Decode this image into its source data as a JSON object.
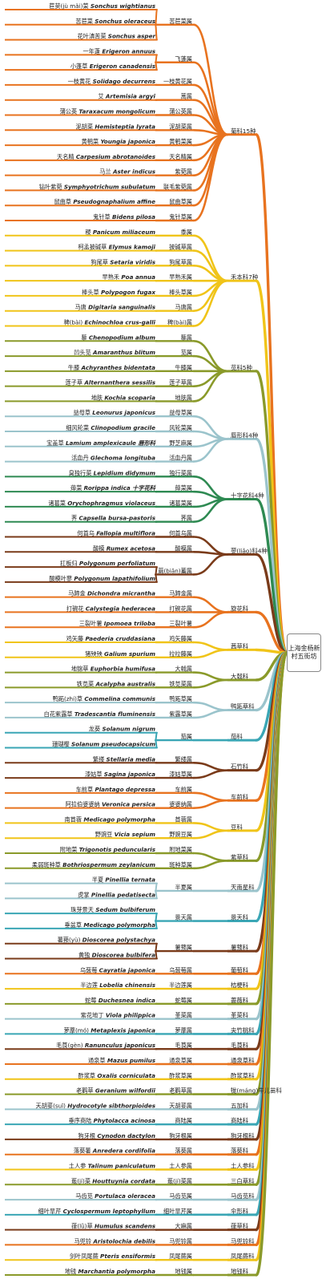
{
  "root": "上海金杨新村五街坊",
  "watermark": "",
  "colors": [
    "#e8731f",
    "#f0c419",
    "#8a9a2a",
    "#9bc4cc",
    "#2e8a52",
    "#7a3b1a",
    "#3aa6b5"
  ],
  "families": [
    {
      "name": "菊科15种",
      "color": "#e8731f",
      "genera": [
        {
          "name": "苦苣菜属",
          "species": [
            [
              "苣荬(jù mǎi)菜",
              "Sonchus wightianus"
            ],
            [
              "苦苣菜",
              "Sonchus oleraceus"
            ],
            [
              "花叶滇苦菜",
              "Sonchus asper"
            ]
          ]
        },
        {
          "name": "飞蓬属",
          "species": [
            [
              "一年蓬",
              "Erigeron annuus"
            ],
            [
              "小蓬草",
              "Erigeron canadensis"
            ]
          ]
        },
        {
          "name": "一枝黄花属",
          "species": [
            [
              "一枝黄花",
              "Solidago decurrens"
            ]
          ]
        },
        {
          "name": "蒿属",
          "species": [
            [
              "艾",
              "Artemisia argyi"
            ]
          ]
        },
        {
          "name": "蒲公英属",
          "species": [
            [
              "蒲公英",
              "Taraxacum mongolicum"
            ]
          ]
        },
        {
          "name": "泥胡菜属",
          "species": [
            [
              "泥胡菜",
              "Hemisteptia lyrata"
            ]
          ]
        },
        {
          "name": "黄鹌菜属",
          "species": [
            [
              "黄鹌菜",
              "Youngia japonica"
            ]
          ]
        },
        {
          "name": "天名精属",
          "species": [
            [
              "天名精",
              "Carpesium abrotanoides"
            ]
          ]
        },
        {
          "name": "紫菀属",
          "species": [
            [
              "马兰",
              "Aster indicus"
            ]
          ]
        },
        {
          "name": "联毛紫菀属",
          "species": [
            [
              "钻叶紫菀",
              "Symphyotrichum subulatum"
            ]
          ]
        },
        {
          "name": "鼠曲草属",
          "species": [
            [
              "鼠曲草",
              "Pseudognaphalium affine"
            ]
          ]
        },
        {
          "name": "鬼针草属",
          "species": [
            [
              "鬼针草",
              "Bidens pilosa"
            ]
          ]
        }
      ]
    },
    {
      "name": "禾本科7种",
      "color": "#f0c419",
      "genera": [
        {
          "name": "黍属",
          "species": [
            [
              "稷",
              "Panicum miliaceum"
            ]
          ]
        },
        {
          "name": "披碱草属",
          "species": [
            [
              "柯孟披碱草",
              "Elymus kamoji"
            ]
          ]
        },
        {
          "name": "狗尾草属",
          "species": [
            [
              "狗尾草",
              "Setaria viridis"
            ]
          ]
        },
        {
          "name": "早熟禾属",
          "species": [
            [
              "早熟禾",
              "Poa annua"
            ]
          ]
        },
        {
          "name": "棒头草属",
          "species": [
            [
              "棒头草",
              "Polypogon fugax"
            ]
          ]
        },
        {
          "name": "马唐属",
          "species": [
            [
              "马唐",
              "Digitaria sanguinalis"
            ]
          ]
        },
        {
          "name": "稗(bài)属",
          "species": [
            [
              "稗(bài)",
              "Echinochloa crus-galli"
            ]
          ]
        }
      ]
    },
    {
      "name": "苋科5种",
      "color": "#8a9a2a",
      "genera": [
        {
          "name": "藜属",
          "species": [
            [
              "藜",
              "Chenopodium album"
            ]
          ]
        },
        {
          "name": "苋属",
          "species": [
            [
              "凹头苋",
              "Amaranthus blitum"
            ]
          ]
        },
        {
          "name": "牛膝属",
          "species": [
            [
              "牛膝",
              "Achyranthes bidentata"
            ]
          ]
        },
        {
          "name": "莲子草属",
          "species": [
            [
              "莲子草",
              "Alternanthera sessilis"
            ]
          ]
        },
        {
          "name": "地肤属",
          "species": [
            [
              "地肤",
              "Kochia scoparia"
            ]
          ]
        }
      ]
    },
    {
      "name": "唇形科4种",
      "color": "#9bc4cc",
      "genera": [
        {
          "name": "益母草属",
          "species": [
            [
              "益母草",
              "Leonurus japonicus"
            ]
          ]
        },
        {
          "name": "风轮菜属",
          "species": [
            [
              "细风轮菜",
              "Clinopodium gracile"
            ]
          ]
        },
        {
          "name": "野芝麻属",
          "species": [
            [
              "宝盖草",
              "Lamium amplexicaule 唇形科"
            ]
          ]
        },
        {
          "name": "活血丹属",
          "species": [
            [
              "活血丹",
              "Glechoma longituba"
            ]
          ]
        }
      ]
    },
    {
      "name": "十字花科4种",
      "color": "#2e8a52",
      "genera": [
        {
          "name": "独行菜属",
          "species": [
            [
              "臭独行菜",
              "Lepidium didymum"
            ]
          ]
        },
        {
          "name": "蔊菜属",
          "species": [
            [
              "蔊菜",
              "Rorippa indica 十字花科"
            ]
          ]
        },
        {
          "name": "诸葛菜属",
          "species": [
            [
              "诸葛菜",
              "Orychophragmus violaceus"
            ]
          ]
        },
        {
          "name": "荠属",
          "species": [
            [
              "荠",
              "Capsella bursa-pastoris"
            ]
          ]
        }
      ]
    },
    {
      "name": "蓼(liǎo)科4种",
      "color": "#7a3b1a",
      "genera": [
        {
          "name": "何首乌属",
          "species": [
            [
              "何首乌",
              "Fallopia multiflora"
            ]
          ]
        },
        {
          "name": "酸模属",
          "species": [
            [
              "酸模",
              "Rumex acetosa"
            ]
          ]
        },
        {
          "name": "萹(biǎn)蓄属",
          "species": [
            [
              "扛板归",
              "Polygonum perfoliatum"
            ],
            [
              "酸模叶蓼",
              "Polygonum lapathifolium"
            ]
          ]
        }
      ]
    },
    {
      "name": "旋花科",
      "color": "#e8731f",
      "genera": [
        {
          "name": "马蹄金属",
          "species": [
            [
              "马蹄金",
              "Dichondra micrantha"
            ]
          ]
        },
        {
          "name": "打碗花属",
          "species": [
            [
              "打碗花",
              "Calystegia hederacea"
            ]
          ]
        },
        {
          "name": "三裂叶薯",
          "species": [
            [
              "三裂叶薯",
              "Ipomoea triloba"
            ]
          ]
        }
      ]
    },
    {
      "name": "茜草科",
      "color": "#f0c419",
      "genera": [
        {
          "name": "鸡矢藤属",
          "species": [
            [
              "鸡矢藤",
              "Paederia cruddasiana"
            ]
          ]
        },
        {
          "name": "拉拉藤属",
          "species": [
            [
              "猪殃殃",
              "Galium spurium"
            ]
          ]
        }
      ]
    },
    {
      "name": "大戟科",
      "color": "#8a9a2a",
      "genera": [
        {
          "name": "大戟属",
          "species": [
            [
              "地锦草",
              "Euphorbia humifusa"
            ]
          ]
        },
        {
          "name": "铁苋菜属",
          "species": [
            [
              "铁苋菜",
              "Acalypha australis"
            ]
          ]
        }
      ]
    },
    {
      "name": "鸭跖草科",
      "color": "#9bc4cc",
      "genera": [
        {
          "name": "鸭跖草属",
          "species": [
            [
              "鸭跖(zhí)草",
              "Commelina communis"
            ]
          ]
        },
        {
          "name": "紫露草属",
          "species": [
            [
              "白花紫露草",
              "Tradescantia fluminensis"
            ]
          ]
        }
      ]
    },
    {
      "name": "茄科",
      "color": "#3aa6b5",
      "genera": [
        {
          "name": "茄属",
          "species": [
            [
              "龙葵",
              "Solanum nigrum"
            ],
            [
              "珊瑚樱",
              "Solanum pseudocapsicum"
            ]
          ]
        }
      ]
    },
    {
      "name": "石竹科",
      "color": "#7a3b1a",
      "genera": [
        {
          "name": "繁缕属",
          "species": [
            [
              "繁缕",
              "Stellaria media"
            ]
          ]
        },
        {
          "name": "漆姑草属",
          "species": [
            [
              "漆姑草",
              "Sagina japonica"
            ]
          ]
        }
      ]
    },
    {
      "name": "车前科",
      "color": "#e8731f",
      "genera": [
        {
          "name": "车前属",
          "species": [
            [
              "车前草",
              "Plantago depressa"
            ]
          ]
        },
        {
          "name": "婆婆纳属",
          "species": [
            [
              "阿拉伯婆婆纳",
              "Veronica persica"
            ]
          ]
        }
      ]
    },
    {
      "name": "豆科",
      "color": "#f0c419",
      "genera": [
        {
          "name": "苜蓿属",
          "species": [
            [
              "南苜蓿",
              "Medicago polymorpha"
            ]
          ]
        },
        {
          "name": "野豌豆属",
          "species": [
            [
              "野豌豆",
              "Vicia sepium"
            ]
          ]
        }
      ]
    },
    {
      "name": "紫草科",
      "color": "#8a9a2a",
      "genera": [
        {
          "name": "附地菜属",
          "species": [
            [
              "附地菜",
              "Trigonotis peduncularis"
            ]
          ]
        },
        {
          "name": "斑种草属",
          "species": [
            [
              "柔弱斑种草",
              "Bothriospermum zeylanicum"
            ]
          ]
        }
      ]
    },
    {
      "name": "天南星科",
      "color": "#9bc4cc",
      "genera": [
        {
          "name": "半夏属",
          "species": [
            [
              "半夏",
              "Pinellia ternata"
            ],
            [
              "虎掌",
              "Pinellia pedatisecta"
            ]
          ]
        }
      ]
    },
    {
      "name": "景天科",
      "color": "#3aa6b5",
      "genera": [
        {
          "name": "景天属",
          "species": [
            [
              "珠芽景天",
              "Sedum bulbiferum"
            ],
            [
              "垂盆草",
              "Medicago polymorpha"
            ]
          ]
        }
      ]
    },
    {
      "name": "薯蓣科",
      "color": "#7a3b1a",
      "genera": [
        {
          "name": "薯蓣属",
          "species": [
            [
              "薯蓣(yù)",
              "Dioscorea polystachya"
            ],
            [
              "黄独",
              "Dioscorea bulbifera"
            ]
          ]
        }
      ]
    },
    {
      "name": "葡萄科",
      "color": "#e8731f",
      "genera": [
        {
          "name": "乌蔹莓属",
          "species": [
            [
              "乌蔹莓",
              "Cayratia japonica"
            ]
          ]
        }
      ]
    },
    {
      "name": "桔梗科",
      "color": "#f0c419",
      "genera": [
        {
          "name": "半边莲属",
          "species": [
            [
              "半边莲",
              "Lobelia chinensis"
            ]
          ]
        }
      ]
    },
    {
      "name": "蔷薇科",
      "color": "#8a9a2a",
      "genera": [
        {
          "name": "蛇莓属",
          "species": [
            [
              "蛇莓",
              "Duchesnea indica"
            ]
          ]
        }
      ]
    },
    {
      "name": "堇菜科",
      "color": "#9bc4cc",
      "genera": [
        {
          "name": "堇菜属",
          "species": [
            [
              "紫花地丁",
              "Viola philippica"
            ]
          ]
        }
      ]
    },
    {
      "name": "夹竹桃科",
      "color": "#3aa6b5",
      "genera": [
        {
          "name": "萝藦属",
          "species": [
            [
              "萝藦(mó)",
              "Metaplexis japonica"
            ]
          ]
        }
      ]
    },
    {
      "name": "毛茛科",
      "color": "#7a3b1a",
      "genera": [
        {
          "name": "毛茛属",
          "species": [
            [
              "毛茛(gèn)",
              "Ranunculus japonicus"
            ]
          ]
        }
      ]
    },
    {
      "name": "通泉草科",
      "color": "#e8731f",
      "genera": [
        {
          "name": "通泉草属",
          "species": [
            [
              "通泉草",
              "Mazus pumilus"
            ]
          ]
        }
      ]
    },
    {
      "name": "酢浆草科",
      "color": "#f0c419",
      "genera": [
        {
          "name": "酢浆草属",
          "species": [
            [
              "酢浆草",
              "Oxalis corniculata"
            ]
          ]
        }
      ]
    },
    {
      "name": "牻(máng)牛儿苗科",
      "color": "#8a9a2a",
      "genera": [
        {
          "name": "老鹳草属",
          "species": [
            [
              "老鹳草",
              "Geranium wilfordii"
            ]
          ]
        }
      ]
    },
    {
      "name": "五加科",
      "color": "#9bc4cc",
      "genera": [
        {
          "name": "天胡荽属",
          "species": [
            [
              "天胡荽(suī)",
              "Hydrocotyle sibthorpioides"
            ]
          ]
        }
      ]
    },
    {
      "name": "商陆科",
      "color": "#3aa6b5",
      "genera": [
        {
          "name": "商陆属",
          "species": [
            [
              "垂序商陆",
              "Phytolacca acinosa"
            ]
          ]
        }
      ]
    },
    {
      "name": "狗牙根科",
      "color": "#7a3b1a",
      "genera": [
        {
          "name": "狗牙根属",
          "species": [
            [
              "狗牙根",
              "Cynodon dactylon"
            ]
          ]
        }
      ]
    },
    {
      "name": "落葵科",
      "color": "#e8731f",
      "genera": [
        {
          "name": "落葵属",
          "species": [
            [
              "落葵薯",
              "Anredera cordifolia"
            ]
          ]
        }
      ]
    },
    {
      "name": "土人参科",
      "color": "#f0c419",
      "genera": [
        {
          "name": "土人参属",
          "species": [
            [
              "土人参",
              "Talinum paniculatum"
            ]
          ]
        }
      ]
    },
    {
      "name": "三白草科",
      "color": "#8a9a2a",
      "genera": [
        {
          "name": "蕺(jí)菜属",
          "species": [
            [
              "蕺(jí)菜",
              "Houttuynia cordata"
            ]
          ]
        }
      ]
    },
    {
      "name": "马齿苋科",
      "color": "#9bc4cc",
      "genera": [
        {
          "name": "马齿苋属",
          "species": [
            [
              "马齿苋",
              "Portulaca oleracea"
            ]
          ]
        }
      ]
    },
    {
      "name": "伞形科",
      "color": "#3aa6b5",
      "genera": [
        {
          "name": "细叶旱芹属",
          "species": [
            [
              "细叶旱芹",
              "Cyclospermum leptophyllum"
            ]
          ]
        }
      ]
    },
    {
      "name": "葎草科",
      "color": "#7a3b1a",
      "genera": [
        {
          "name": "大麻属",
          "species": [
            [
              "葎(lǜ)草",
              "Humulus scandens"
            ]
          ]
        }
      ]
    },
    {
      "name": "马兜铃科",
      "color": "#e8731f",
      "genera": [
        {
          "name": "马兜铃属",
          "species": [
            [
              "马兜铃",
              "Aristolochia debilis"
            ]
          ]
        }
      ]
    },
    {
      "name": "凤尾蕨科",
      "color": "#f0c419",
      "genera": [
        {
          "name": "凤尾蕨属",
          "species": [
            [
              "剑叶凤尾蕨",
              "Pteris ensiformis"
            ]
          ]
        }
      ]
    },
    {
      "name": "地钱科",
      "color": "#8a9a2a",
      "genera": [
        {
          "name": "地钱属",
          "species": [
            [
              "地钱",
              "Marchantia polymorpha"
            ]
          ]
        }
      ]
    }
  ]
}
